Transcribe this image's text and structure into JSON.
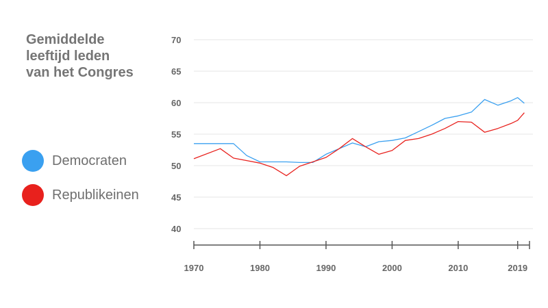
{
  "title_lines": [
    "Gemiddelde",
    "leeftijd leden",
    "van het Congres"
  ],
  "legend": [
    {
      "label": "Democraten",
      "color": "#3aa0f0"
    },
    {
      "label": "Republikeinen",
      "color": "#e8211d"
    }
  ],
  "chart_data": {
    "type": "line",
    "title": "Gemiddelde leeftijd leden van het Congres",
    "xlabel": "",
    "ylabel": "",
    "xlim": [
      1970,
      2021
    ],
    "ylim": [
      40,
      70
    ],
    "x_ticks": [
      1970,
      1980,
      1990,
      2000,
      2010,
      2019
    ],
    "y_ticks": [
      40,
      45,
      50,
      55,
      60,
      65,
      70
    ],
    "grid": true,
    "legend_position": "left",
    "series": [
      {
        "name": "Democraten",
        "color": "#3aa0f0",
        "x": [
          1970,
          1972,
          1974,
          1976,
          1978,
          1980,
          1982,
          1984,
          1986,
          1988,
          1990,
          1992,
          1994,
          1996,
          1998,
          2000,
          2002,
          2004,
          2006,
          2008,
          2010,
          2012,
          2014,
          2016,
          2018,
          2019,
          2020
        ],
        "y": [
          53.5,
          53.5,
          53.5,
          53.5,
          51.6,
          50.6,
          50.6,
          50.6,
          50.5,
          50.5,
          51.8,
          52.7,
          53.6,
          53,
          53.8,
          54,
          54.4,
          55.4,
          56.4,
          57.5,
          57.9,
          58.5,
          60.5,
          59.6,
          60.3,
          60.8,
          59.9
        ]
      },
      {
        "name": "Republikeinen",
        "color": "#e8211d",
        "x": [
          1970,
          1974,
          1976,
          1978,
          1980,
          1982,
          1984,
          1986,
          1988,
          1990,
          1992,
          1994,
          1996,
          1998,
          2000,
          2002,
          2004,
          2006,
          2008,
          2010,
          2012,
          2014,
          2016,
          2018,
          2019,
          2020
        ],
        "y": [
          51.1,
          52.7,
          51.2,
          50.8,
          50.4,
          49.7,
          48.4,
          49.9,
          50.6,
          51.3,
          52.7,
          54.3,
          53,
          51.8,
          52.4,
          54,
          54.3,
          55,
          55.9,
          57,
          56.9,
          55.3,
          55.9,
          56.7,
          57.2,
          58.4
        ]
      }
    ]
  }
}
